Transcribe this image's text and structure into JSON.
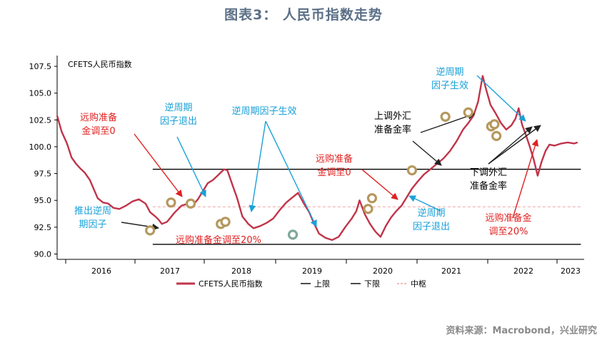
{
  "figure_title": "图表3： 人民币指数走势",
  "source": "资料来源：Macrobond，兴业研究",
  "chart_data": {
    "type": "line",
    "series_label": "CFETS人民币指数",
    "ylim": [
      89.5,
      108.5
    ],
    "xlim": [
      2015.5,
      2023.55
    ],
    "y_ticks": [
      "90.0",
      "92.5",
      "95.0",
      "97.5",
      "100.0",
      "102.5",
      "105.0",
      "107.5"
    ],
    "x_ticks": [
      "2016",
      "2017",
      "2018",
      "2019",
      "2020",
      "2021",
      "2022",
      "2023"
    ],
    "series": [
      {
        "name": "CFETS人民币指数",
        "color": "#c0344a",
        "points": [
          [
            2015.5,
            102.9
          ],
          [
            2015.57,
            101.4
          ],
          [
            2015.65,
            100.3
          ],
          [
            2015.72,
            99.0
          ],
          [
            2015.79,
            98.4
          ],
          [
            2015.85,
            98.0
          ],
          [
            2015.92,
            97.6
          ],
          [
            2016.0,
            96.9
          ],
          [
            2016.07,
            95.9
          ],
          [
            2016.12,
            95.2
          ],
          [
            2016.2,
            94.8
          ],
          [
            2016.28,
            94.7
          ],
          [
            2016.36,
            94.3
          ],
          [
            2016.45,
            94.2
          ],
          [
            2016.55,
            94.5
          ],
          [
            2016.65,
            94.9
          ],
          [
            2016.75,
            95.1
          ],
          [
            2016.85,
            94.7
          ],
          [
            2016.92,
            93.9
          ],
          [
            2017.0,
            93.5
          ],
          [
            2017.05,
            93.2
          ],
          [
            2017.1,
            92.8
          ],
          [
            2017.18,
            93.0
          ],
          [
            2017.3,
            93.9
          ],
          [
            2017.4,
            94.5
          ],
          [
            2017.5,
            94.7
          ],
          [
            2017.58,
            94.6
          ],
          [
            2017.65,
            95.1
          ],
          [
            2017.72,
            95.8
          ],
          [
            2017.8,
            96.6
          ],
          [
            2017.88,
            96.9
          ],
          [
            2017.95,
            97.3
          ],
          [
            2018.0,
            97.6
          ],
          [
            2018.05,
            97.9
          ],
          [
            2018.1,
            97.8
          ],
          [
            2018.18,
            96.4
          ],
          [
            2018.25,
            95.2
          ],
          [
            2018.33,
            93.5
          ],
          [
            2018.42,
            92.8
          ],
          [
            2018.5,
            92.4
          ],
          [
            2018.6,
            92.6
          ],
          [
            2018.7,
            92.9
          ],
          [
            2018.8,
            93.3
          ],
          [
            2018.9,
            94.1
          ],
          [
            2019.0,
            94.8
          ],
          [
            2019.1,
            95.3
          ],
          [
            2019.18,
            95.7
          ],
          [
            2019.26,
            94.8
          ],
          [
            2019.35,
            93.9
          ],
          [
            2019.42,
            92.9
          ],
          [
            2019.5,
            91.9
          ],
          [
            2019.6,
            91.5
          ],
          [
            2019.7,
            91.3
          ],
          [
            2019.8,
            91.6
          ],
          [
            2019.9,
            92.5
          ],
          [
            2020.0,
            93.3
          ],
          [
            2020.07,
            94.0
          ],
          [
            2020.12,
            95.0
          ],
          [
            2020.2,
            93.7
          ],
          [
            2020.28,
            92.8
          ],
          [
            2020.36,
            92.1
          ],
          [
            2020.44,
            91.6
          ],
          [
            2020.52,
            92.6
          ],
          [
            2020.6,
            93.4
          ],
          [
            2020.68,
            94.0
          ],
          [
            2020.76,
            94.5
          ],
          [
            2020.84,
            95.3
          ],
          [
            2020.92,
            96.1
          ],
          [
            2021.0,
            96.7
          ],
          [
            2021.1,
            97.4
          ],
          [
            2021.2,
            97.9
          ],
          [
            2021.3,
            98.4
          ],
          [
            2021.4,
            98.9
          ],
          [
            2021.5,
            99.6
          ],
          [
            2021.6,
            100.5
          ],
          [
            2021.7,
            101.6
          ],
          [
            2021.78,
            102.2
          ],
          [
            2021.86,
            102.9
          ],
          [
            2021.93,
            104.2
          ],
          [
            2022.0,
            106.6
          ],
          [
            2022.05,
            105.4
          ],
          [
            2022.12,
            103.9
          ],
          [
            2022.2,
            103.1
          ],
          [
            2022.28,
            102.2
          ],
          [
            2022.36,
            101.6
          ],
          [
            2022.44,
            102.0
          ],
          [
            2022.5,
            102.6
          ],
          [
            2022.55,
            103.6
          ],
          [
            2022.6,
            102.1
          ],
          [
            2022.66,
            101.1
          ],
          [
            2022.72,
            100.0
          ],
          [
            2022.78,
            98.8
          ],
          [
            2022.84,
            97.3
          ],
          [
            2022.9,
            98.6
          ],
          [
            2022.96,
            99.6
          ],
          [
            2023.02,
            100.2
          ],
          [
            2023.1,
            100.1
          ],
          [
            2023.2,
            100.3
          ],
          [
            2023.3,
            100.4
          ],
          [
            2023.4,
            100.3
          ],
          [
            2023.45,
            100.4
          ]
        ]
      },
      {
        "name": "上限",
        "color": "#000000",
        "y": 97.9,
        "x_range": [
          2016.96,
          2023.5
        ]
      },
      {
        "name": "下限",
        "color": "#000000",
        "y": 90.9,
        "x_range": [
          2016.96,
          2023.5
        ]
      },
      {
        "name": "中枢",
        "color": "#f0a0a0",
        "y": 94.4,
        "x_range": [
          2016.96,
          2023.5
        ]
      }
    ],
    "markers": [
      {
        "x": 2016.92,
        "y": 92.2,
        "color": "#b5985e"
      },
      {
        "x": 2017.24,
        "y": 94.8,
        "color": "#b5985e"
      },
      {
        "x": 2017.54,
        "y": 94.7,
        "color": "#b5985e"
      },
      {
        "x": 2018.0,
        "y": 92.8,
        "color": "#b5985e"
      },
      {
        "x": 2018.07,
        "y": 93.0,
        "color": "#b5985e"
      },
      {
        "x": 2019.1,
        "y": 91.8,
        "color": "#7fa79a"
      },
      {
        "x": 2020.25,
        "y": 94.2,
        "color": "#b5985e"
      },
      {
        "x": 2020.31,
        "y": 95.2,
        "color": "#b5985e"
      },
      {
        "x": 2020.92,
        "y": 97.8,
        "color": "#b5985e"
      },
      {
        "x": 2021.43,
        "y": 102.8,
        "color": "#b5985e"
      },
      {
        "x": 2021.78,
        "y": 103.2,
        "color": "#b5985e"
      },
      {
        "x": 2022.13,
        "y": 101.9,
        "color": "#b5985e"
      },
      {
        "x": 2022.18,
        "y": 102.1,
        "color": "#b5985e"
      },
      {
        "x": 2022.21,
        "y": 101.0,
        "color": "#b5985e"
      }
    ],
    "annotations": [
      {
        "lines": [
          "远购准备",
          "金调至0"
        ],
        "color": "red"
      },
      {
        "lines": [
          "逆周期",
          "因子退出"
        ],
        "color": "blue"
      },
      {
        "lines": [
          "逆周期因子生效"
        ],
        "color": "blue"
      },
      {
        "lines": [
          "推出逆周",
          "期因子"
        ],
        "color": "blue"
      },
      {
        "lines": [
          "远购准备金调至20%"
        ],
        "color": "red"
      },
      {
        "lines": [
          "上调外汇",
          "准备金率"
        ],
        "color": "black"
      },
      {
        "lines": [
          "远购准备",
          "金调至0"
        ],
        "color": "red"
      },
      {
        "lines": [
          "逆周期",
          "因子退出"
        ],
        "color": "blue"
      },
      {
        "lines": [
          "逆周期",
          "因子生效"
        ],
        "color": "blue"
      },
      {
        "lines": [
          "下调外汇",
          "准备金率"
        ],
        "color": "black"
      },
      {
        "lines": [
          "远购准备金",
          "调至20%"
        ],
        "color": "red"
      }
    ]
  },
  "legend": [
    {
      "label": "CFETS人民币指数",
      "style": "solid",
      "color": "#c0344a"
    },
    {
      "label": "上限",
      "style": "solid",
      "color": "#000000"
    },
    {
      "label": "下限",
      "style": "solid",
      "color": "#000000"
    },
    {
      "label": "中枢",
      "style": "dashed",
      "color": "#f0a0a0"
    }
  ]
}
